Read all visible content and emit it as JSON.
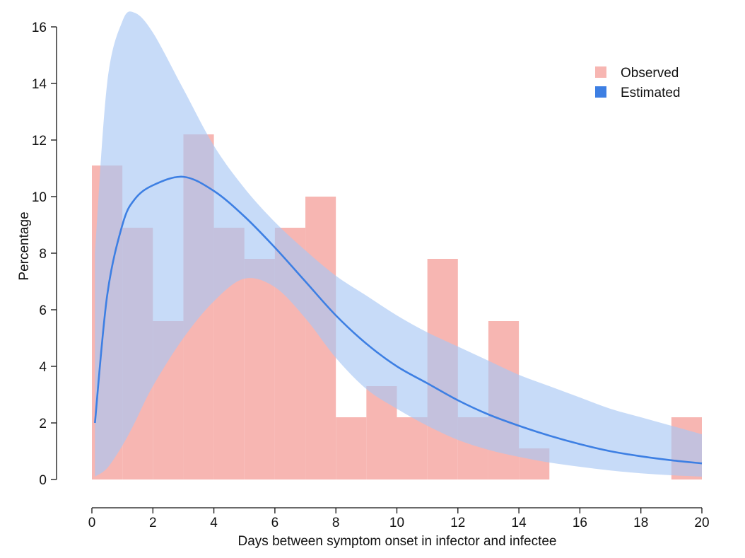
{
  "chart_data": {
    "type": "bar",
    "xlabel": "Days between symptom onset in infector and infectee",
    "ylabel": "Percentage",
    "xlim": [
      0,
      20
    ],
    "ylim": [
      0,
      16
    ],
    "x_ticks": [
      0,
      2,
      4,
      6,
      8,
      10,
      12,
      14,
      16,
      18,
      20
    ],
    "y_ticks": [
      0,
      2,
      4,
      6,
      8,
      10,
      12,
      14,
      16
    ],
    "grid": false,
    "legend_position": "top-right",
    "observed": {
      "name": "Observed",
      "color": "#f7b6b2",
      "bins": [
        {
          "start": 0,
          "end": 1,
          "value": 11.1
        },
        {
          "start": 1,
          "end": 2,
          "value": 8.9
        },
        {
          "start": 2,
          "end": 3,
          "value": 5.6
        },
        {
          "start": 3,
          "end": 4,
          "value": 12.2
        },
        {
          "start": 4,
          "end": 5,
          "value": 8.9
        },
        {
          "start": 5,
          "end": 6,
          "value": 7.8
        },
        {
          "start": 6,
          "end": 7,
          "value": 8.9
        },
        {
          "start": 7,
          "end": 8,
          "value": 10.0
        },
        {
          "start": 8,
          "end": 9,
          "value": 2.2
        },
        {
          "start": 9,
          "end": 10,
          "value": 3.3
        },
        {
          "start": 10,
          "end": 11,
          "value": 2.2
        },
        {
          "start": 11,
          "end": 12,
          "value": 7.8
        },
        {
          "start": 12,
          "end": 13,
          "value": 2.2
        },
        {
          "start": 13,
          "end": 14,
          "value": 5.6
        },
        {
          "start": 14,
          "end": 15,
          "value": 1.1
        },
        {
          "start": 15,
          "end": 16,
          "value": 0
        },
        {
          "start": 16,
          "end": 17,
          "value": 0
        },
        {
          "start": 17,
          "end": 18,
          "value": 0
        },
        {
          "start": 18,
          "end": 19,
          "value": 0
        },
        {
          "start": 19,
          "end": 20,
          "value": 2.2
        }
      ]
    },
    "estimated": {
      "name": "Estimated",
      "line_color": "#3d7fe3",
      "band_color": "#a9c8f5",
      "x": [
        0.1,
        0.5,
        1,
        1.4,
        2,
        3,
        4,
        5,
        6,
        7,
        8,
        9,
        10,
        11,
        12,
        13,
        14,
        15,
        16,
        17,
        18,
        19,
        20
      ],
      "mean": [
        2.0,
        6.5,
        9.0,
        9.9,
        10.4,
        10.7,
        10.2,
        9.3,
        8.2,
        7.0,
        5.8,
        4.8,
        4.0,
        3.4,
        2.8,
        2.3,
        1.9,
        1.55,
        1.25,
        1.0,
        0.82,
        0.68,
        0.57
      ],
      "upper": [
        8.0,
        14.0,
        16.2,
        16.5,
        15.8,
        13.8,
        11.8,
        10.3,
        9.1,
        8.1,
        7.2,
        6.5,
        5.8,
        5.2,
        4.7,
        4.2,
        3.7,
        3.3,
        2.9,
        2.5,
        2.2,
        1.9,
        1.6
      ],
      "lower": [
        0.1,
        0.4,
        1.2,
        2.0,
        3.3,
        5.0,
        6.3,
        7.1,
        6.8,
        5.7,
        4.3,
        3.2,
        2.5,
        1.9,
        1.4,
        1.05,
        0.8,
        0.6,
        0.45,
        0.32,
        0.22,
        0.15,
        0.1
      ]
    }
  }
}
